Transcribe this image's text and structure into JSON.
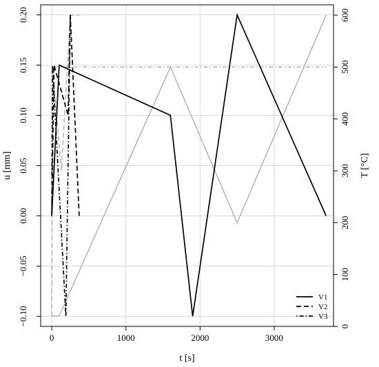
{
  "chart_data": {
    "type": "line",
    "title": "",
    "xlabel": "t [s]",
    "ylabel_left": "u [mm]",
    "ylabel_right": "T [°C]",
    "xlim": [
      -150,
      3800
    ],
    "ylim_left": [
      -0.11,
      0.21
    ],
    "ylim_right": [
      0,
      620
    ],
    "x_ticks": [
      0,
      1000,
      2000,
      3000
    ],
    "x_tick_labels": [
      "0",
      "1000",
      "2000",
      "3000"
    ],
    "y_left_ticks": [
      -0.1,
      -0.05,
      0.0,
      0.05,
      0.1,
      0.15,
      0.2
    ],
    "y_left_tick_labels": [
      "−0.10",
      "−0.05",
      "0.00",
      "0.05",
      "0.10",
      "0.15",
      "0.20"
    ],
    "y_right_ticks": [
      0,
      100,
      200,
      300,
      400,
      500,
      600
    ],
    "y_right_tick_labels": [
      "0",
      "100",
      "200",
      "300",
      "400",
      "500",
      "600"
    ],
    "grid": true,
    "legend_position": "bottom-right",
    "colors": {
      "displacement": "#000000",
      "temperature": "#b3b3b3",
      "grid": "#d9d9d9"
    },
    "series": [
      {
        "name": "V1",
        "axis": "left",
        "kind": "displacement",
        "dash": "solid",
        "x": [
          0,
          100,
          1600,
          1900,
          2500,
          3700
        ],
        "y": [
          0.0,
          0.15,
          0.1,
          -0.1,
          0.2,
          0.0
        ]
      },
      {
        "name": "V2",
        "axis": "left",
        "kind": "displacement",
        "dash": "dashed",
        "x": [
          0,
          30,
          220,
          250,
          370
        ],
        "y": [
          0.0,
          0.15,
          0.1,
          0.2,
          0.0
        ]
      },
      {
        "name": "V3",
        "axis": "left",
        "kind": "displacement",
        "dash": "dotdash",
        "x": [
          0,
          10,
          190,
          250
        ],
        "y": [
          0.0,
          0.15,
          -0.1,
          0.2
        ]
      },
      {
        "axis": "right",
        "kind": "temperature",
        "dash": "solid",
        "x": [
          0,
          100,
          1600,
          2500,
          3700
        ],
        "y": [
          20,
          20,
          500,
          200,
          600
        ]
      },
      {
        "axis": "right",
        "kind": "temperature",
        "dash": "dashed",
        "x": [
          0,
          10,
          130,
          250,
          370
        ],
        "y": [
          20,
          500,
          300,
          600,
          600
        ]
      },
      {
        "axis": "right",
        "kind": "temperature",
        "dash": "dotdash",
        "x": [
          0,
          10,
          3700
        ],
        "y": [
          500,
          500,
          500
        ]
      }
    ],
    "legend": [
      "V1",
      "V2",
      "V3"
    ]
  }
}
